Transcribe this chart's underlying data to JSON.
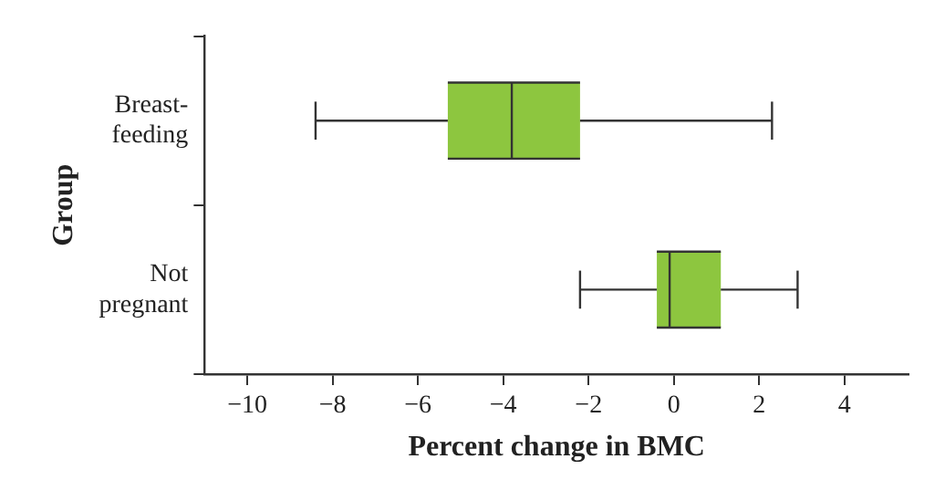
{
  "chart_data": {
    "type": "box",
    "orientation": "horizontal",
    "xlabel": "Percent change in BMC",
    "ylabel": "Group",
    "categories": [
      "Breast-feeding",
      "Not pregnant"
    ],
    "boxes": [
      {
        "low": -8.4,
        "q1": -5.3,
        "median": -3.8,
        "q3": -2.2,
        "high": 2.3
      },
      {
        "low": -2.2,
        "q1": -0.4,
        "median": -0.1,
        "q3": 1.1,
        "high": 2.9
      }
    ],
    "color": "#8dc63f",
    "xlim": [
      -11,
      5.5
    ],
    "xticks": [
      -10,
      -8,
      -6,
      -4,
      -2,
      0,
      2,
      4
    ],
    "grid": false,
    "legend": false
  }
}
